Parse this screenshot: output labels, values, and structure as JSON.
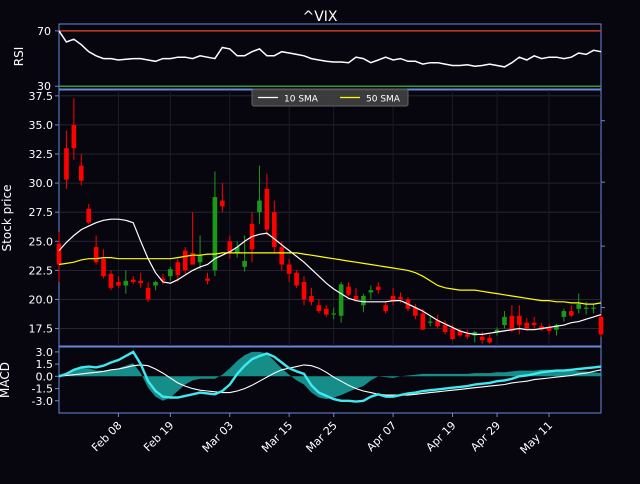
{
  "chart_data": {
    "type": "candlestick",
    "title": "^VIX",
    "colors": {
      "background": "#07060f",
      "axis": "#6a86d8",
      "text": "#ffffff",
      "up": "#1a9a1a",
      "down": "#ff0000",
      "sma10": "#ffffff",
      "sma50": "#ffff00",
      "rsi": "#ffffff",
      "rsi_upper": "#c83a2a",
      "rsi_lower": "#2f9e3a",
      "macd": "#40e8f0",
      "signal": "#ffffff",
      "hist": "#1aa6a0"
    },
    "dates": [
      "Jan 29",
      "Jan 30",
      "Jan 31",
      "Feb 01",
      "Feb 02",
      "Feb 05",
      "Feb 06",
      "Feb 07",
      "Feb 08",
      "Feb 09",
      "Feb 12",
      "Feb 13",
      "Feb 14",
      "Feb 15",
      "Feb 16",
      "Feb 20",
      "Feb 21",
      "Feb 22",
      "Feb 23",
      "Feb 26",
      "Feb 27",
      "Feb 28",
      "Mar 01",
      "Mar 02",
      "Mar 05",
      "Mar 06",
      "Mar 07",
      "Mar 08",
      "Mar 09",
      "Mar 12",
      "Mar 13",
      "Mar 14",
      "Mar 15",
      "Mar 16",
      "Mar 19",
      "Mar 20",
      "Mar 21",
      "Mar 22",
      "Mar 23",
      "Mar 26",
      "Mar 27",
      "Mar 28",
      "Mar 29",
      "Apr 02",
      "Apr 03",
      "Apr 04",
      "Apr 05",
      "Apr 06",
      "Apr 09",
      "Apr 10",
      "Apr 11",
      "Apr 12",
      "Apr 13",
      "Apr 16",
      "Apr 17",
      "Apr 18",
      "Apr 19",
      "Apr 20",
      "Apr 23",
      "Apr 24",
      "Apr 25",
      "Apr 26",
      "Apr 27",
      "Apr 30",
      "May 01",
      "May 02",
      "May 03",
      "May 04",
      "May 07",
      "May 08",
      "May 09",
      "May 10",
      "May 11",
      "May 14"
    ],
    "x_ticks": [
      "Feb 08",
      "Feb 19",
      "Mar 03",
      "Mar 15",
      "Mar 25",
      "Apr 07",
      "Apr 19",
      "Apr 29",
      "May 11"
    ],
    "x_tick_index": [
      8,
      15,
      23,
      31,
      37,
      45,
      53,
      59,
      66
    ],
    "price": {
      "ylabel": "Stock price",
      "ylim": [
        16.0,
        38.0
      ],
      "yticks": [
        17.5,
        20.0,
        22.5,
        25.0,
        27.5,
        30.0,
        32.5,
        35.0,
        37.5
      ],
      "candles": [
        [
          24.8,
          25.8,
          21.5,
          23.0
        ],
        [
          33.0,
          34.5,
          29.5,
          30.3
        ],
        [
          35.0,
          37.3,
          32.0,
          33.0
        ],
        [
          31.5,
          32.5,
          29.8,
          30.2
        ],
        [
          27.8,
          28.2,
          26.5,
          26.6
        ],
        [
          24.5,
          25.5,
          23.0,
          23.2
        ],
        [
          23.5,
          24.3,
          21.8,
          22.0
        ],
        [
          22.2,
          22.5,
          20.8,
          21.0
        ],
        [
          21.5,
          22.0,
          21.0,
          21.2
        ],
        [
          21.2,
          22.5,
          20.5,
          21.6
        ],
        [
          21.7,
          22.0,
          21.3,
          21.5
        ],
        [
          21.6,
          22.3,
          21.0,
          21.4
        ],
        [
          21.0,
          21.5,
          19.8,
          20.0
        ],
        [
          21.2,
          21.6,
          20.8,
          21.5
        ],
        [
          21.8,
          22.2,
          21.3,
          21.6
        ],
        [
          22.0,
          22.8,
          21.6,
          22.6
        ],
        [
          23.2,
          23.5,
          21.5,
          22.1
        ],
        [
          24.2,
          24.5,
          22.2,
          22.5
        ],
        [
          24.0,
          27.5,
          23.2,
          23.0
        ],
        [
          23.2,
          25.5,
          22.6,
          23.8
        ],
        [
          21.8,
          22.3,
          21.3,
          21.6
        ],
        [
          22.5,
          31.0,
          22.0,
          28.8
        ],
        [
          28.5,
          30.0,
          27.5,
          28.0
        ],
        [
          25.0,
          25.5,
          23.5,
          24.0
        ],
        [
          24.0,
          25.0,
          23.6,
          24.5
        ],
        [
          22.8,
          25.5,
          22.4,
          23.3
        ],
        [
          26.5,
          27.5,
          23.2,
          24.3
        ],
        [
          27.5,
          31.5,
          26.5,
          28.5
        ],
        [
          29.5,
          30.8,
          25.5,
          26.0
        ],
        [
          27.5,
          28.5,
          24.0,
          24.5
        ],
        [
          24.5,
          25.0,
          22.5,
          23.0
        ],
        [
          23.0,
          23.5,
          21.5,
          22.2
        ],
        [
          22.3,
          22.5,
          21.0,
          21.2
        ],
        [
          21.5,
          22.0,
          19.5,
          20.0
        ],
        [
          20.3,
          21.0,
          19.5,
          19.8
        ],
        [
          19.5,
          20.0,
          18.8,
          19.0
        ],
        [
          19.2,
          19.5,
          18.5,
          18.7
        ],
        [
          18.7,
          19.3,
          18.3,
          18.8
        ],
        [
          18.6,
          21.5,
          18.0,
          21.3
        ],
        [
          21.1,
          21.5,
          20.3,
          20.4
        ],
        [
          20.3,
          21.0,
          19.8,
          20.0
        ],
        [
          19.5,
          20.5,
          18.9,
          20.3
        ],
        [
          20.6,
          21.2,
          20.0,
          20.8
        ],
        [
          21.1,
          21.5,
          20.5,
          20.8
        ],
        [
          19.5,
          19.8,
          18.8,
          19.0
        ],
        [
          20.3,
          21.0,
          19.5,
          19.8
        ],
        [
          20.2,
          20.6,
          19.7,
          20.0
        ],
        [
          20.0,
          20.2,
          19.0,
          19.2
        ],
        [
          19.3,
          19.6,
          18.3,
          18.6
        ],
        [
          18.8,
          19.2,
          17.6,
          17.4
        ],
        [
          18.0,
          18.5,
          17.7,
          18.1
        ],
        [
          18.2,
          18.7,
          17.5,
          17.7
        ],
        [
          17.8,
          18.2,
          17.0,
          17.2
        ],
        [
          17.5,
          17.8,
          16.5,
          16.6
        ],
        [
          17.3,
          17.5,
          16.8,
          16.9
        ],
        [
          17.0,
          17.4,
          16.6,
          16.8
        ],
        [
          16.9,
          17.3,
          16.3,
          17.2
        ],
        [
          16.8,
          17.2,
          16.2,
          16.5
        ],
        [
          16.7,
          17.0,
          16.2,
          16.3
        ],
        [
          17.2,
          17.6,
          16.9,
          17.4
        ],
        [
          17.8,
          19.0,
          17.5,
          18.5
        ],
        [
          18.6,
          19.5,
          17.2,
          17.3
        ],
        [
          18.6,
          19.5,
          17.0,
          17.8
        ],
        [
          18.0,
          18.4,
          17.3,
          17.5
        ],
        [
          18.0,
          18.5,
          17.5,
          17.8
        ],
        [
          17.7,
          18.0,
          17.3,
          17.4
        ],
        [
          17.6,
          17.9,
          17.0,
          17.3
        ],
        [
          17.4,
          17.9,
          16.9,
          17.8
        ],
        [
          18.5,
          19.2,
          18.1,
          19.0
        ],
        [
          19.0,
          19.5,
          18.5,
          18.6
        ],
        [
          19.2,
          20.5,
          18.8,
          19.6
        ],
        [
          19.2,
          19.8,
          18.7,
          19.3
        ],
        [
          19.2,
          19.6,
          18.8,
          19.3
        ],
        [
          18.5,
          18.8,
          16.8,
          17.0
        ]
      ],
      "sma10": [
        24.2,
        24.9,
        25.5,
        26.0,
        26.3,
        26.6,
        26.8,
        26.9,
        26.9,
        26.8,
        26.6,
        25.0,
        23.5,
        22.3,
        21.5,
        21.4,
        21.7,
        22.1,
        22.5,
        22.8,
        23.0,
        23.5,
        23.8,
        24.1,
        24.5,
        25.0,
        25.4,
        25.6,
        25.7,
        25.2,
        24.7,
        24.2,
        23.7,
        23.2,
        22.6,
        22.0,
        21.4,
        20.9,
        20.5,
        20.1,
        19.9,
        19.8,
        19.8,
        19.8,
        19.8,
        19.9,
        19.9,
        19.6,
        19.3,
        19.0,
        18.6,
        18.2,
        17.9,
        17.6,
        17.3,
        17.1,
        17.0,
        17.0,
        17.1,
        17.2,
        17.3,
        17.4,
        17.5,
        17.4,
        17.4,
        17.5,
        17.6,
        17.7,
        17.8,
        18.0,
        18.1,
        18.3,
        18.5,
        18.7
      ],
      "sma50": [
        23.0,
        23.1,
        23.2,
        23.4,
        23.5,
        23.5,
        23.6,
        23.6,
        23.5,
        23.5,
        23.5,
        23.5,
        23.5,
        23.5,
        23.5,
        23.5,
        23.6,
        23.7,
        23.8,
        23.8,
        23.9,
        23.9,
        24.0,
        24.0,
        24.0,
        24.0,
        24.0,
        24.0,
        24.0,
        24.0,
        24.0,
        24.0,
        24.0,
        23.9,
        23.8,
        23.7,
        23.6,
        23.5,
        23.4,
        23.3,
        23.2,
        23.1,
        23.0,
        22.9,
        22.8,
        22.7,
        22.6,
        22.5,
        22.3,
        22.0,
        21.6,
        21.2,
        21.0,
        20.9,
        20.8,
        20.8,
        20.8,
        20.7,
        20.6,
        20.5,
        20.4,
        20.3,
        20.2,
        20.1,
        20.0,
        19.9,
        19.9,
        19.8,
        19.8,
        19.7,
        19.7,
        19.6,
        19.6,
        19.7
      ]
    },
    "rsi": {
      "ylabel": "RSI",
      "ylim": [
        28,
        75
      ],
      "yticks": [
        30,
        70
      ],
      "upper": 70,
      "lower": 30,
      "values": [
        70,
        62,
        64,
        60,
        55,
        52,
        50,
        50,
        49,
        49.5,
        50,
        50,
        49,
        48,
        50,
        50,
        51,
        51,
        50,
        52,
        51,
        50,
        58,
        57,
        52,
        52,
        55,
        57,
        52,
        52,
        55,
        54,
        53,
        52,
        50,
        49,
        48,
        47.5,
        47.5,
        47,
        51,
        50,
        47,
        49,
        51,
        49,
        50,
        48,
        48,
        46,
        47,
        47,
        46,
        45,
        45,
        45.5,
        44.5,
        45,
        46,
        45,
        44,
        47,
        51,
        49,
        52,
        50,
        51,
        51,
        50,
        51,
        54,
        53,
        56,
        55
      ]
    },
    "macd": {
      "ylabel": "MACD",
      "ylim": [
        -4.5,
        3.6
      ],
      "yticks": [
        3.0,
        1.5,
        0.0,
        -1.5,
        -3.0
      ],
      "macd": [
        0.0,
        0.3,
        0.8,
        1.1,
        1.2,
        1.1,
        1.3,
        1.7,
        2.0,
        2.5,
        3.0,
        1.5,
        -0.6,
        -1.8,
        -2.5,
        -2.6,
        -2.6,
        -2.4,
        -2.2,
        -2.0,
        -2.1,
        -2.2,
        -1.8,
        -1.0,
        0.3,
        1.3,
        2.1,
        2.5,
        2.8,
        2.4,
        1.7,
        1.0,
        0.6,
        0.3,
        -1.1,
        -2.0,
        -2.4,
        -2.8,
        -3.0,
        -3.0,
        -3.1,
        -3.0,
        -2.5,
        -2.2,
        -2.5,
        -2.5,
        -2.3,
        -2.1,
        -2.0,
        -1.8,
        -1.7,
        -1.6,
        -1.5,
        -1.4,
        -1.3,
        -1.2,
        -1.0,
        -0.9,
        -0.8,
        -0.6,
        -0.5,
        -0.3,
        0.0,
        0.1,
        0.3,
        0.5,
        0.6,
        0.7,
        0.7,
        0.8,
        0.9,
        1.0,
        1.1,
        1.2
      ],
      "signal": [
        0.0,
        0.1,
        0.2,
        0.3,
        0.4,
        0.5,
        0.6,
        0.8,
        0.9,
        1.1,
        1.3,
        1.4,
        1.3,
        0.9,
        0.4,
        -0.2,
        -0.8,
        -1.2,
        -1.5,
        -1.7,
        -1.8,
        -1.9,
        -2.0,
        -2.0,
        -1.8,
        -1.5,
        -1.1,
        -0.6,
        -0.1,
        0.4,
        0.8,
        1.0,
        1.2,
        1.4,
        1.3,
        1.0,
        0.5,
        -0.1,
        -0.6,
        -1.1,
        -1.5,
        -1.8,
        -2.0,
        -2.2,
        -2.3,
        -2.3,
        -2.3,
        -2.3,
        -2.2,
        -2.1,
        -2.0,
        -1.9,
        -1.8,
        -1.7,
        -1.6,
        -1.5,
        -1.4,
        -1.3,
        -1.2,
        -1.1,
        -1.0,
        -0.8,
        -0.7,
        -0.6,
        -0.4,
        -0.3,
        -0.2,
        -0.1,
        0.0,
        0.1,
        0.3,
        0.4,
        0.6,
        0.8
      ],
      "hist": [
        0.2,
        0.3,
        0.8,
        1.0,
        1.0,
        0.7,
        0.7,
        0.8,
        1.0,
        1.3,
        1.6,
        0.4,
        -1.4,
        -2.5,
        -3.0,
        -2.6,
        -1.8,
        -1.0,
        -0.5,
        -0.3,
        -0.3,
        -0.3,
        0.2,
        1.0,
        1.9,
        2.6,
        3.0,
        3.0,
        2.8,
        1.9,
        1.0,
        0.2,
        -0.5,
        -1.0,
        -2.0,
        -2.6,
        -2.8,
        -2.6,
        -2.3,
        -1.9,
        -1.5,
        -1.2,
        -0.5,
        0.0,
        -0.1,
        -0.2,
        0.0,
        0.1,
        0.2,
        0.3,
        0.3,
        0.3,
        0.3,
        0.3,
        0.3,
        0.3,
        0.4,
        0.4,
        0.4,
        0.5,
        0.5,
        0.6,
        0.7,
        0.7,
        0.7,
        0.8,
        0.8,
        0.8,
        0.7,
        0.7,
        0.6,
        0.6,
        0.5,
        0.4
      ]
    },
    "legend": [
      {
        "label": "10 SMA",
        "color": "#ffffff"
      },
      {
        "label": "50 SMA",
        "color": "#ffff00"
      }
    ],
    "grid": true,
    "legend_position": "top-center"
  }
}
